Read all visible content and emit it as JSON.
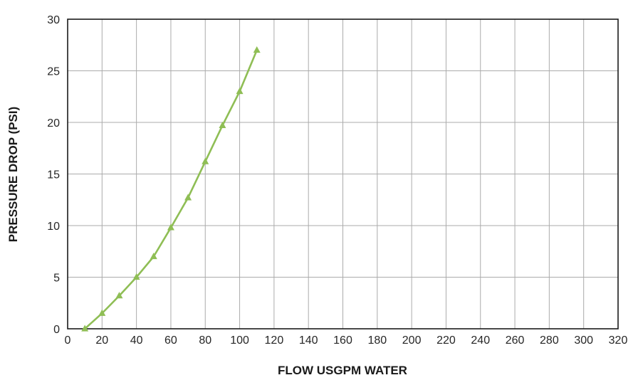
{
  "chart_data": {
    "type": "line",
    "title": "",
    "xlabel": "FLOW USGPM WATER",
    "ylabel": "PRESSURE DROP (PSI)",
    "x": [
      10,
      20,
      30,
      40,
      50,
      60,
      70,
      80,
      90,
      100,
      110
    ],
    "y": [
      0,
      1.5,
      3.2,
      5.0,
      7.0,
      9.8,
      12.7,
      16.2,
      19.7,
      23.0,
      27.0
    ],
    "xlim": [
      0,
      320
    ],
    "ylim": [
      0,
      30
    ],
    "x_tick_step": 20,
    "y_tick_step": 5,
    "grid": true,
    "legend_position": "none",
    "series_name": "pressure-drop-vs-flow",
    "colors": {
      "line": "#8fbe55",
      "marker": "#8fbe55",
      "grid": "#ababab",
      "border": "#1a1a1a",
      "tick_text": "#262626",
      "axis_title_text": "#1a1a1a",
      "background": "#ffffff"
    }
  }
}
